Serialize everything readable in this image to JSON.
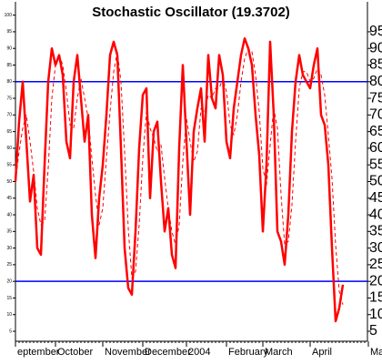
{
  "chart_data": {
    "type": "line",
    "title": "Stochastic Oscillator (19.3702)",
    "categories": [
      "eptember",
      null,
      null,
      null,
      null,
      null,
      null,
      null,
      null,
      null,
      null,
      "October",
      null,
      null,
      null,
      null,
      null,
      null,
      null,
      null,
      null,
      null,
      null,
      null,
      "November",
      null,
      null,
      null,
      null,
      null,
      null,
      null,
      null,
      null,
      null,
      "December",
      null,
      null,
      null,
      null,
      null,
      null,
      null,
      null,
      null,
      null,
      null,
      "2004",
      null,
      null,
      null,
      null,
      null,
      null,
      null,
      null,
      null,
      null,
      "February",
      null,
      null,
      null,
      null,
      null,
      null,
      null,
      null,
      null,
      "March",
      null,
      null,
      null,
      null,
      null,
      null,
      null,
      null,
      null,
      null,
      null,
      null,
      "April",
      null,
      null,
      null,
      null,
      null,
      null,
      null,
      null,
      null,
      null,
      null,
      null,
      null,
      null,
      null,
      "Ma"
    ],
    "series": [
      {
        "color": "#ff0000",
        "style": "solid",
        "values": [
          50,
          68,
          80,
          62,
          44,
          52,
          30,
          28,
          55,
          80,
          90,
          85,
          88,
          82,
          62,
          57,
          80,
          88,
          75,
          62,
          70,
          40,
          27,
          45,
          55,
          70,
          88,
          92,
          88,
          60,
          30,
          18,
          16,
          35,
          60,
          76,
          78,
          45,
          65,
          68,
          50,
          35,
          42,
          28,
          24,
          60,
          85,
          62,
          40,
          65,
          72,
          78,
          62,
          88,
          75,
          72,
          88,
          82,
          62,
          57,
          72,
          80,
          88,
          93,
          90,
          85,
          70,
          58,
          35,
          55,
          92,
          70,
          35,
          32,
          25,
          40,
          65,
          80,
          88,
          82,
          80,
          78,
          85,
          90,
          70,
          67,
          55,
          30,
          8,
          12,
          19,
          null,
          null,
          null,
          null,
          null,
          null,
          null
        ]
      },
      {
        "color": "#ff0000",
        "style": "dashed",
        "values": [
          50,
          59,
          66,
          70,
          62,
          53,
          42,
          37,
          38,
          54,
          75,
          85,
          88,
          85,
          77,
          67,
          66,
          75,
          81,
          75,
          69,
          57,
          46,
          37,
          42,
          57,
          71,
          83,
          89,
          80,
          59,
          36,
          21,
          23,
          37,
          57,
          71,
          66,
          63,
          59,
          61,
          51,
          42,
          35,
          31,
          37,
          56,
          69,
          62,
          56,
          59,
          72,
          71,
          76,
          75,
          78,
          78,
          81,
          77,
          67,
          64,
          70,
          80,
          87,
          90,
          89,
          82,
          71,
          54,
          49,
          61,
          72,
          66,
          46,
          31,
          32,
          43,
          62,
          78,
          83,
          83,
          80,
          81,
          84,
          82,
          76,
          64,
          51,
          31,
          17,
          13,
          null,
          null,
          null,
          null,
          null,
          null,
          null
        ]
      }
    ],
    "ylim": [
      2,
      104
    ],
    "yticks": [
      5,
      10,
      15,
      20,
      25,
      30,
      35,
      40,
      45,
      50,
      55,
      60,
      65,
      70,
      75,
      80,
      85,
      90,
      95,
      100
    ],
    "y2lim": [
      2,
      104
    ],
    "y2ticks": [
      5,
      10,
      15,
      20,
      25,
      30,
      35,
      40,
      45,
      50,
      55,
      60,
      65,
      70,
      75,
      80,
      85,
      90,
      95
    ],
    "hlines": [
      20,
      80
    ],
    "hline_color": "#0000ff"
  }
}
